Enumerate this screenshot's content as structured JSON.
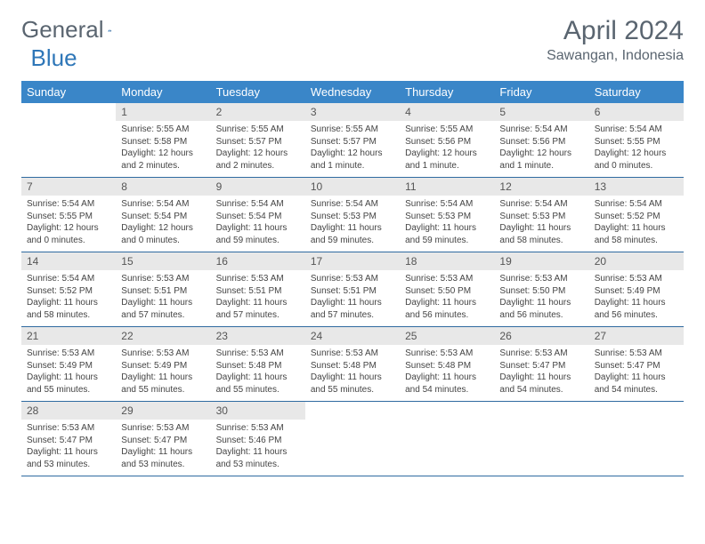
{
  "brand": {
    "part1": "General",
    "part2": "Blue"
  },
  "title": "April 2024",
  "location": "Sawangan, Indonesia",
  "colors": {
    "header_bg": "#3a86c8",
    "header_text": "#ffffff",
    "daynum_bg": "#e8e8e8",
    "rule": "#2f6aa0",
    "brand_gray": "#5a6570",
    "brand_blue": "#2f77b8"
  },
  "weekdays": [
    "Sunday",
    "Monday",
    "Tuesday",
    "Wednesday",
    "Thursday",
    "Friday",
    "Saturday"
  ],
  "weeks": [
    [
      null,
      {
        "n": "1",
        "sunrise": "5:55 AM",
        "sunset": "5:58 PM",
        "daylight": "12 hours and 2 minutes."
      },
      {
        "n": "2",
        "sunrise": "5:55 AM",
        "sunset": "5:57 PM",
        "daylight": "12 hours and 2 minutes."
      },
      {
        "n": "3",
        "sunrise": "5:55 AM",
        "sunset": "5:57 PM",
        "daylight": "12 hours and 1 minute."
      },
      {
        "n": "4",
        "sunrise": "5:55 AM",
        "sunset": "5:56 PM",
        "daylight": "12 hours and 1 minute."
      },
      {
        "n": "5",
        "sunrise": "5:54 AM",
        "sunset": "5:56 PM",
        "daylight": "12 hours and 1 minute."
      },
      {
        "n": "6",
        "sunrise": "5:54 AM",
        "sunset": "5:55 PM",
        "daylight": "12 hours and 0 minutes."
      }
    ],
    [
      {
        "n": "7",
        "sunrise": "5:54 AM",
        "sunset": "5:55 PM",
        "daylight": "12 hours and 0 minutes."
      },
      {
        "n": "8",
        "sunrise": "5:54 AM",
        "sunset": "5:54 PM",
        "daylight": "12 hours and 0 minutes."
      },
      {
        "n": "9",
        "sunrise": "5:54 AM",
        "sunset": "5:54 PM",
        "daylight": "11 hours and 59 minutes."
      },
      {
        "n": "10",
        "sunrise": "5:54 AM",
        "sunset": "5:53 PM",
        "daylight": "11 hours and 59 minutes."
      },
      {
        "n": "11",
        "sunrise": "5:54 AM",
        "sunset": "5:53 PM",
        "daylight": "11 hours and 59 minutes."
      },
      {
        "n": "12",
        "sunrise": "5:54 AM",
        "sunset": "5:53 PM",
        "daylight": "11 hours and 58 minutes."
      },
      {
        "n": "13",
        "sunrise": "5:54 AM",
        "sunset": "5:52 PM",
        "daylight": "11 hours and 58 minutes."
      }
    ],
    [
      {
        "n": "14",
        "sunrise": "5:54 AM",
        "sunset": "5:52 PM",
        "daylight": "11 hours and 58 minutes."
      },
      {
        "n": "15",
        "sunrise": "5:53 AM",
        "sunset": "5:51 PM",
        "daylight": "11 hours and 57 minutes."
      },
      {
        "n": "16",
        "sunrise": "5:53 AM",
        "sunset": "5:51 PM",
        "daylight": "11 hours and 57 minutes."
      },
      {
        "n": "17",
        "sunrise": "5:53 AM",
        "sunset": "5:51 PM",
        "daylight": "11 hours and 57 minutes."
      },
      {
        "n": "18",
        "sunrise": "5:53 AM",
        "sunset": "5:50 PM",
        "daylight": "11 hours and 56 minutes."
      },
      {
        "n": "19",
        "sunrise": "5:53 AM",
        "sunset": "5:50 PM",
        "daylight": "11 hours and 56 minutes."
      },
      {
        "n": "20",
        "sunrise": "5:53 AM",
        "sunset": "5:49 PM",
        "daylight": "11 hours and 56 minutes."
      }
    ],
    [
      {
        "n": "21",
        "sunrise": "5:53 AM",
        "sunset": "5:49 PM",
        "daylight": "11 hours and 55 minutes."
      },
      {
        "n": "22",
        "sunrise": "5:53 AM",
        "sunset": "5:49 PM",
        "daylight": "11 hours and 55 minutes."
      },
      {
        "n": "23",
        "sunrise": "5:53 AM",
        "sunset": "5:48 PM",
        "daylight": "11 hours and 55 minutes."
      },
      {
        "n": "24",
        "sunrise": "5:53 AM",
        "sunset": "5:48 PM",
        "daylight": "11 hours and 55 minutes."
      },
      {
        "n": "25",
        "sunrise": "5:53 AM",
        "sunset": "5:48 PM",
        "daylight": "11 hours and 54 minutes."
      },
      {
        "n": "26",
        "sunrise": "5:53 AM",
        "sunset": "5:47 PM",
        "daylight": "11 hours and 54 minutes."
      },
      {
        "n": "27",
        "sunrise": "5:53 AM",
        "sunset": "5:47 PM",
        "daylight": "11 hours and 54 minutes."
      }
    ],
    [
      {
        "n": "28",
        "sunrise": "5:53 AM",
        "sunset": "5:47 PM",
        "daylight": "11 hours and 53 minutes."
      },
      {
        "n": "29",
        "sunrise": "5:53 AM",
        "sunset": "5:47 PM",
        "daylight": "11 hours and 53 minutes."
      },
      {
        "n": "30",
        "sunrise": "5:53 AM",
        "sunset": "5:46 PM",
        "daylight": "11 hours and 53 minutes."
      },
      null,
      null,
      null,
      null
    ]
  ],
  "labels": {
    "sunrise": "Sunrise:",
    "sunset": "Sunset:",
    "daylight": "Daylight:"
  }
}
